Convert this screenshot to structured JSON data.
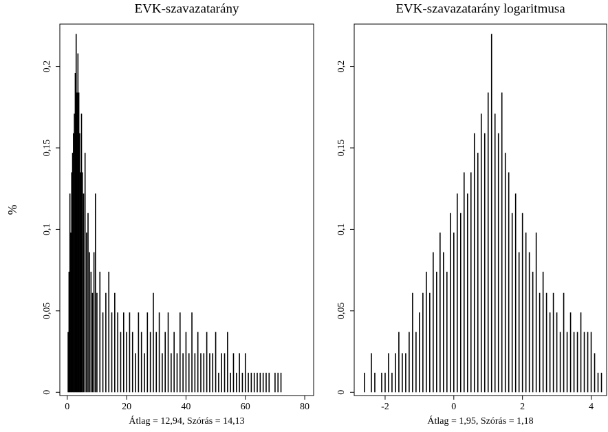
{
  "chart_data": [
    {
      "type": "spike",
      "title": "EVK-szavazatarány",
      "ylabel": "%",
      "xlabel": "Átlag = 12,94, Szórás = 14,13",
      "color": "#000000",
      "x": [
        0.3,
        0.6,
        0.9,
        1.2,
        1.5,
        1.8,
        2.1,
        2.4,
        2.7,
        3.0,
        3.3,
        3.6,
        3.9,
        4.2,
        4.5,
        4.8,
        5.1,
        5.5,
        6,
        6.5,
        7,
        7.5,
        8,
        8.5,
        9,
        9.5,
        10,
        11,
        12,
        13,
        14,
        15,
        16,
        17,
        18,
        19,
        20,
        21,
        22,
        23,
        24,
        25,
        26,
        27,
        28,
        29,
        30,
        31,
        32,
        33,
        34,
        35,
        36,
        37,
        38,
        39,
        40,
        41,
        42,
        43,
        44,
        45,
        46,
        47,
        48,
        49,
        50,
        51,
        52,
        53,
        54,
        55,
        56,
        57,
        58,
        59,
        60,
        61,
        62,
        63,
        64,
        65,
        66,
        67,
        68,
        70,
        71,
        72
      ],
      "values": [
        0.037,
        0.074,
        0.122,
        0.098,
        0.135,
        0.147,
        0.159,
        0.171,
        0.196,
        0.22,
        0.184,
        0.208,
        0.184,
        0.159,
        0.135,
        0.171,
        0.135,
        0.122,
        0.147,
        0.098,
        0.11,
        0.086,
        0.074,
        0.061,
        0.086,
        0.122,
        0.061,
        0.074,
        0.049,
        0.061,
        0.074,
        0.049,
        0.061,
        0.049,
        0.037,
        0.049,
        0.037,
        0.049,
        0.037,
        0.024,
        0.049,
        0.037,
        0.024,
        0.049,
        0.037,
        0.061,
        0.037,
        0.049,
        0.024,
        0.037,
        0.049,
        0.024,
        0.037,
        0.024,
        0.049,
        0.024,
        0.037,
        0.024,
        0.049,
        0.024,
        0.037,
        0.024,
        0.024,
        0.037,
        0.024,
        0.024,
        0.037,
        0.012,
        0.024,
        0.024,
        0.037,
        0.012,
        0.024,
        0.012,
        0.024,
        0.012,
        0.024,
        0.012,
        0.012,
        0.012,
        0.012,
        0.012,
        0.012,
        0.012,
        0.012,
        0.012,
        0.012,
        0.012
      ],
      "xlim": [
        -2.5,
        83
      ],
      "ylim": [
        -0.002,
        0.226
      ],
      "xticks": [
        0,
        20,
        40,
        60,
        80
      ],
      "yticks": [
        0,
        {
          "value": 0.05,
          "label": "0,05"
        },
        {
          "value": 0.1,
          "label": "0,1"
        },
        {
          "value": 0.15,
          "label": "0,15"
        },
        {
          "value": 0.2,
          "label": "0,2"
        }
      ]
    },
    {
      "type": "spike",
      "title": "EVK-szavazatarány logaritmusa",
      "xlabel": "Átlag = 1,95, Szórás = 1,18",
      "color": "#000000",
      "x": [
        -2.6,
        -2.4,
        -2.3,
        -2.1,
        -2.0,
        -1.9,
        -1.8,
        -1.7,
        -1.6,
        -1.5,
        -1.4,
        -1.3,
        -1.2,
        -1.1,
        -1.0,
        -0.9,
        -0.8,
        -0.7,
        -0.6,
        -0.5,
        -0.4,
        -0.3,
        -0.2,
        -0.1,
        0,
        0.1,
        0.2,
        0.3,
        0.4,
        0.5,
        0.6,
        0.7,
        0.8,
        0.9,
        1.0,
        1.1,
        1.2,
        1.3,
        1.4,
        1.5,
        1.6,
        1.7,
        1.8,
        1.9,
        2.0,
        2.1,
        2.2,
        2.3,
        2.4,
        2.5,
        2.6,
        2.7,
        2.8,
        2.9,
        3.0,
        3.1,
        3.2,
        3.3,
        3.4,
        3.5,
        3.6,
        3.7,
        3.8,
        3.9,
        4.0,
        4.1,
        4.2,
        4.3
      ],
      "values": [
        0.012,
        0.024,
        0.012,
        0.012,
        0.012,
        0.024,
        0.012,
        0.024,
        0.037,
        0.024,
        0.024,
        0.037,
        0.061,
        0.037,
        0.049,
        0.061,
        0.074,
        0.061,
        0.086,
        0.074,
        0.098,
        0.086,
        0.074,
        0.11,
        0.098,
        0.122,
        0.11,
        0.135,
        0.122,
        0.135,
        0.159,
        0.147,
        0.171,
        0.159,
        0.184,
        0.22,
        0.171,
        0.159,
        0.184,
        0.147,
        0.135,
        0.11,
        0.122,
        0.086,
        0.11,
        0.098,
        0.086,
        0.074,
        0.098,
        0.061,
        0.074,
        0.061,
        0.049,
        0.061,
        0.049,
        0.037,
        0.061,
        0.037,
        0.049,
        0.037,
        0.037,
        0.049,
        0.037,
        0.037,
        0.037,
        0.024,
        0.012,
        0.012
      ],
      "xlim": [
        -2.9,
        4.45
      ],
      "ylim": [
        -0.002,
        0.226
      ],
      "xticks": [
        -2,
        0,
        2,
        4
      ],
      "yticks": [
        0,
        {
          "value": 0.05,
          "label": "0,05"
        },
        {
          "value": 0.1,
          "label": "0,1"
        },
        {
          "value": 0.15,
          "label": "0,15"
        },
        {
          "value": 0.2,
          "label": "0,2"
        }
      ]
    }
  ]
}
